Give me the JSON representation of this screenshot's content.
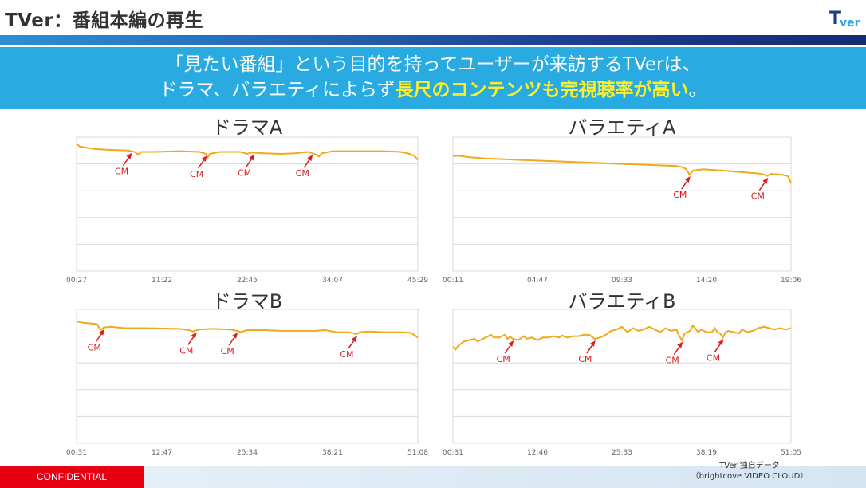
{
  "header": {
    "title": "TVer：番組本編の再生",
    "logo_text": "TVer"
  },
  "banner": {
    "line1": "「見たい番組」という目的を持ってユーザーが来訪するTVerは、",
    "line2_pre": "ドラマ、バラエティによらず",
    "line2_highlight": "長尺のコンテンツも完視聴率が高い",
    "line2_post": "。"
  },
  "cm_label": "CM",
  "colors": {
    "line": "#f0a81c",
    "arrow": "#d81e22",
    "grid": "#d9d9d9"
  },
  "chart_data": [
    {
      "type": "line",
      "title": "ドラマA",
      "x_ticks": [
        "00:27",
        "11:22",
        "22:45",
        "34:07",
        "45:29"
      ],
      "ylim": [
        0,
        100
      ],
      "grid": true,
      "series": [
        {
          "points": [
            [
              0,
              95
            ],
            [
              0.01,
              93
            ],
            [
              0.03,
              92
            ],
            [
              0.06,
              91
            ],
            [
              0.1,
              90.5
            ],
            [
              0.15,
              90
            ],
            [
              0.17,
              89
            ],
            [
              0.18,
              87
            ],
            [
              0.19,
              89
            ],
            [
              0.23,
              89
            ],
            [
              0.3,
              89.5
            ],
            [
              0.36,
              89
            ],
            [
              0.38,
              87.5
            ],
            [
              0.385,
              85
            ],
            [
              0.39,
              87.5
            ],
            [
              0.42,
              89
            ],
            [
              0.48,
              89
            ],
            [
              0.5,
              87.5
            ],
            [
              0.51,
              88.5
            ],
            [
              0.55,
              88
            ],
            [
              0.6,
              87.5
            ],
            [
              0.64,
              88
            ],
            [
              0.66,
              88.5
            ],
            [
              0.68,
              89
            ],
            [
              0.7,
              87
            ],
            [
              0.71,
              85.5
            ],
            [
              0.72,
              88
            ],
            [
              0.75,
              89.5
            ],
            [
              0.8,
              89.5
            ],
            [
              0.9,
              89.5
            ],
            [
              0.95,
              89
            ],
            [
              0.97,
              88
            ],
            [
              0.99,
              86
            ],
            [
              1,
              83
            ]
          ]
        }
      ],
      "cm_positions": [
        0.16,
        0.38,
        0.52,
        0.69
      ]
    },
    {
      "type": "line",
      "title": "バラエティA",
      "x_ticks": [
        "00:11",
        "04:47",
        "09:33",
        "14:20",
        "19:06"
      ],
      "ylim": [
        0,
        100
      ],
      "grid": true,
      "series": [
        {
          "points": [
            [
              0,
              86
            ],
            [
              0.02,
              86
            ],
            [
              0.05,
              85
            ],
            [
              0.1,
              84
            ],
            [
              0.2,
              83
            ],
            [
              0.3,
              82
            ],
            [
              0.4,
              81
            ],
            [
              0.5,
              80
            ],
            [
              0.55,
              79.5
            ],
            [
              0.6,
              79
            ],
            [
              0.66,
              78.5
            ],
            [
              0.68,
              77.5
            ],
            [
              0.69,
              76
            ],
            [
              0.7,
              72
            ],
            [
              0.71,
              75
            ],
            [
              0.74,
              76
            ],
            [
              0.8,
              75
            ],
            [
              0.85,
              74
            ],
            [
              0.9,
              73
            ],
            [
              0.92,
              72
            ],
            [
              0.93,
              71
            ],
            [
              0.94,
              72.5
            ],
            [
              0.97,
              72
            ],
            [
              0.99,
              71
            ],
            [
              1,
              66
            ]
          ]
        }
      ],
      "cm_positions": [
        0.7,
        0.93
      ]
    },
    {
      "type": "line",
      "title": "ドラマB",
      "x_ticks": [
        "00:31",
        "12:47",
        "25:34",
        "38:21",
        "51:08"
      ],
      "ylim": [
        0,
        100
      ],
      "grid": true,
      "series": [
        {
          "points": [
            [
              0,
              91
            ],
            [
              0.02,
              90
            ],
            [
              0.06,
              89
            ],
            [
              0.07,
              84.5
            ],
            [
              0.08,
              86.5
            ],
            [
              0.1,
              87
            ],
            [
              0.14,
              86
            ],
            [
              0.2,
              86
            ],
            [
              0.3,
              85.5
            ],
            [
              0.33,
              84.5
            ],
            [
              0.34,
              83.5
            ],
            [
              0.36,
              85
            ],
            [
              0.4,
              85.5
            ],
            [
              0.45,
              85
            ],
            [
              0.47,
              84
            ],
            [
              0.48,
              83
            ],
            [
              0.5,
              84.5
            ],
            [
              0.55,
              84.5
            ],
            [
              0.6,
              84
            ],
            [
              0.7,
              84
            ],
            [
              0.73,
              84.5
            ],
            [
              0.76,
              83
            ],
            [
              0.8,
              83
            ],
            [
              0.82,
              81.5
            ],
            [
              0.83,
              83
            ],
            [
              0.86,
              83.5
            ],
            [
              0.9,
              83
            ],
            [
              0.95,
              83
            ],
            [
              0.98,
              82.5
            ],
            [
              1,
              79
            ]
          ]
        }
      ],
      "cm_positions": [
        0.08,
        0.35,
        0.47,
        0.82
      ]
    },
    {
      "type": "line",
      "title": "バラエティB",
      "x_ticks": [
        "00:31",
        "12:46",
        "25:33",
        "38:19",
        "51:05"
      ],
      "ylim": [
        0,
        100
      ],
      "grid": true,
      "series": [
        {
          "points": [
            [
              0,
              72
            ],
            [
              0.01,
              70
            ],
            [
              0.02,
              73
            ],
            [
              0.04,
              76
            ],
            [
              0.06,
              77
            ],
            [
              0.08,
              78
            ],
            [
              0.09,
              76
            ],
            [
              0.1,
              77
            ],
            [
              0.12,
              79
            ],
            [
              0.14,
              81
            ],
            [
              0.15,
              79
            ],
            [
              0.17,
              79
            ],
            [
              0.19,
              81
            ],
            [
              0.2,
              78
            ],
            [
              0.21,
              79.5
            ],
            [
              0.22,
              78
            ],
            [
              0.24,
              77
            ],
            [
              0.26,
              80
            ],
            [
              0.27,
              78
            ],
            [
              0.29,
              79
            ],
            [
              0.31,
              77
            ],
            [
              0.33,
              79
            ],
            [
              0.35,
              79
            ],
            [
              0.37,
              80
            ],
            [
              0.39,
              79
            ],
            [
              0.4,
              80.5
            ],
            [
              0.42,
              79
            ],
            [
              0.44,
              80
            ],
            [
              0.46,
              80
            ],
            [
              0.48,
              81
            ],
            [
              0.5,
              81
            ],
            [
              0.52,
              78
            ],
            [
              0.54,
              79
            ],
            [
              0.56,
              81
            ],
            [
              0.58,
              84
            ],
            [
              0.6,
              85
            ],
            [
              0.62,
              87
            ],
            [
              0.64,
              83
            ],
            [
              0.66,
              86
            ],
            [
              0.68,
              84
            ],
            [
              0.7,
              85
            ],
            [
              0.72,
              87
            ],
            [
              0.74,
              85
            ],
            [
              0.76,
              83
            ],
            [
              0.78,
              86
            ],
            [
              0.8,
              84
            ],
            [
              0.82,
              85
            ],
            [
              0.83,
              80
            ],
            [
              0.84,
              77
            ],
            [
              0.85,
              82
            ],
            [
              0.87,
              84
            ],
            [
              0.88,
              88
            ],
            [
              0.9,
              83
            ],
            [
              0.91,
              85
            ],
            [
              0.92,
              84
            ],
            [
              0.93,
              83
            ],
            [
              0.95,
              83
            ],
            [
              0.96,
              86
            ],
            [
              0.97,
              83
            ],
            [
              0.98,
              82
            ],
            [
              0.99,
              79
            ],
            [
              1,
              83
            ],
            [
              1.01,
              84
            ],
            [
              1.03,
              83
            ],
            [
              1.05,
              82
            ],
            [
              1.06,
              85
            ],
            [
              1.08,
              83
            ],
            [
              1.1,
              84
            ],
            [
              1.12,
              86
            ],
            [
              1.14,
              87
            ],
            [
              1.16,
              86
            ],
            [
              1.18,
              85
            ],
            [
              1.2,
              86
            ],
            [
              1.22,
              85
            ],
            [
              1.24,
              86
            ]
          ]
        }
      ],
      "x_scale_max": 1.24,
      "cm_positions": [
        0.22,
        0.52,
        0.84,
        0.99
      ],
      "cm_positions_scaled": true
    }
  ],
  "footer": {
    "confidential": "CONFIDENTIAL",
    "source_line1": "TVer 独自データ",
    "source_line2": "（brightcove VIDEO CLOUD）"
  }
}
